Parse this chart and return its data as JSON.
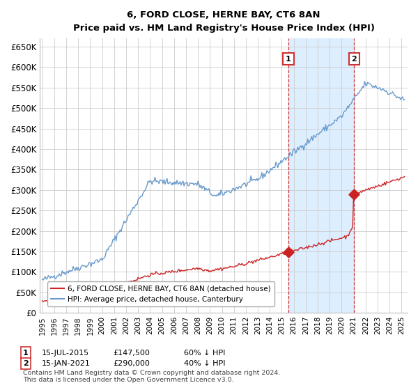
{
  "title": "6, FORD CLOSE, HERNE BAY, CT6 8AN",
  "subtitle": "Price paid vs. HM Land Registry's House Price Index (HPI)",
  "ylabel_ticks": [
    "£0",
    "£50K",
    "£100K",
    "£150K",
    "£200K",
    "£250K",
    "£300K",
    "£350K",
    "£400K",
    "£450K",
    "£500K",
    "£550K",
    "£600K",
    "£650K"
  ],
  "ytick_values": [
    0,
    50000,
    100000,
    150000,
    200000,
    250000,
    300000,
    350000,
    400000,
    450000,
    500000,
    550000,
    600000,
    650000
  ],
  "ylim": [
    0,
    670000
  ],
  "xlim_start": 1994.8,
  "xlim_end": 2025.5,
  "hpi_color": "#6699cc",
  "price_color": "#cc2222",
  "sale1_date": 2015.54,
  "sale1_price": 147500,
  "sale2_date": 2021.04,
  "sale2_price": 290000,
  "vline_color": "#cc3333",
  "shaded_color": "#ddeeff",
  "legend_label1": "6, FORD CLOSE, HERNE BAY, CT6 8AN (detached house)",
  "legend_label2": "HPI: Average price, detached house, Canterbury",
  "footer": "Contains HM Land Registry data © Crown copyright and database right 2024.\nThis data is licensed under the Open Government Licence v3.0.",
  "background_color": "#ffffff",
  "grid_color": "#cccccc"
}
